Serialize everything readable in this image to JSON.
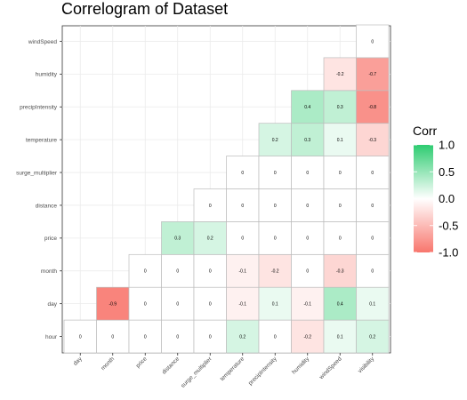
{
  "chart_data": {
    "type": "heatmap",
    "title": "Correlogram of Dataset",
    "xlabel": "",
    "ylabel": "",
    "x_categories": [
      "day",
      "month",
      "price",
      "distance",
      "surge_multiplier",
      "temperature",
      "precipIntensity",
      "humidity",
      "windSpeed",
      "visibility"
    ],
    "y_categories": [
      "hour",
      "day",
      "month",
      "price",
      "distance",
      "surge_multiplier",
      "temperature",
      "precipIntensity",
      "humidity",
      "windSpeed"
    ],
    "cells": [
      {
        "x": "day",
        "y": "hour",
        "value": 0
      },
      {
        "x": "month",
        "y": "hour",
        "value": 0
      },
      {
        "x": "price",
        "y": "hour",
        "value": 0
      },
      {
        "x": "distance",
        "y": "hour",
        "value": 0
      },
      {
        "x": "surge_multiplier",
        "y": "hour",
        "value": 0
      },
      {
        "x": "temperature",
        "y": "hour",
        "value": 0.2
      },
      {
        "x": "precipIntensity",
        "y": "hour",
        "value": 0
      },
      {
        "x": "humidity",
        "y": "hour",
        "value": -0.2
      },
      {
        "x": "windSpeed",
        "y": "hour",
        "value": 0.1
      },
      {
        "x": "visibility",
        "y": "hour",
        "value": 0.2
      },
      {
        "x": "month",
        "y": "day",
        "value": -0.9
      },
      {
        "x": "price",
        "y": "day",
        "value": 0
      },
      {
        "x": "distance",
        "y": "day",
        "value": 0
      },
      {
        "x": "surge_multiplier",
        "y": "day",
        "value": 0
      },
      {
        "x": "temperature",
        "y": "day",
        "value": -0.1
      },
      {
        "x": "precipIntensity",
        "y": "day",
        "value": 0.1
      },
      {
        "x": "humidity",
        "y": "day",
        "value": -0.1
      },
      {
        "x": "windSpeed",
        "y": "day",
        "value": 0.4
      },
      {
        "x": "visibility",
        "y": "day",
        "value": 0.1
      },
      {
        "x": "price",
        "y": "month",
        "value": 0
      },
      {
        "x": "distance",
        "y": "month",
        "value": 0
      },
      {
        "x": "surge_multiplier",
        "y": "month",
        "value": 0
      },
      {
        "x": "temperature",
        "y": "month",
        "value": -0.1
      },
      {
        "x": "precipIntensity",
        "y": "month",
        "value": -0.2
      },
      {
        "x": "humidity",
        "y": "month",
        "value": 0
      },
      {
        "x": "windSpeed",
        "y": "month",
        "value": -0.3
      },
      {
        "x": "visibility",
        "y": "month",
        "value": 0
      },
      {
        "x": "distance",
        "y": "price",
        "value": 0.3
      },
      {
        "x": "surge_multiplier",
        "y": "price",
        "value": 0.2
      },
      {
        "x": "temperature",
        "y": "price",
        "value": 0
      },
      {
        "x": "precipIntensity",
        "y": "price",
        "value": 0
      },
      {
        "x": "humidity",
        "y": "price",
        "value": 0
      },
      {
        "x": "windSpeed",
        "y": "price",
        "value": 0
      },
      {
        "x": "visibility",
        "y": "price",
        "value": 0
      },
      {
        "x": "surge_multiplier",
        "y": "distance",
        "value": 0
      },
      {
        "x": "temperature",
        "y": "distance",
        "value": 0
      },
      {
        "x": "precipIntensity",
        "y": "distance",
        "value": 0
      },
      {
        "x": "humidity",
        "y": "distance",
        "value": 0
      },
      {
        "x": "windSpeed",
        "y": "distance",
        "value": 0
      },
      {
        "x": "visibility",
        "y": "distance",
        "value": 0
      },
      {
        "x": "temperature",
        "y": "surge_multiplier",
        "value": 0
      },
      {
        "x": "precipIntensity",
        "y": "surge_multiplier",
        "value": 0
      },
      {
        "x": "humidity",
        "y": "surge_multiplier",
        "value": 0
      },
      {
        "x": "windSpeed",
        "y": "surge_multiplier",
        "value": 0
      },
      {
        "x": "visibility",
        "y": "surge_multiplier",
        "value": 0
      },
      {
        "x": "precipIntensity",
        "y": "temperature",
        "value": 0.2
      },
      {
        "x": "humidity",
        "y": "temperature",
        "value": 0.3
      },
      {
        "x": "windSpeed",
        "y": "temperature",
        "value": 0.1
      },
      {
        "x": "visibility",
        "y": "temperature",
        "value": -0.3
      },
      {
        "x": "humidity",
        "y": "precipIntensity",
        "value": 0.4
      },
      {
        "x": "windSpeed",
        "y": "precipIntensity",
        "value": 0.3
      },
      {
        "x": "visibility",
        "y": "precipIntensity",
        "value": -0.8
      },
      {
        "x": "windSpeed",
        "y": "humidity",
        "value": -0.2
      },
      {
        "x": "visibility",
        "y": "humidity",
        "value": -0.7
      },
      {
        "x": "visibility",
        "y": "windSpeed",
        "value": 0
      }
    ],
    "color_scale": {
      "low": "#f8766d",
      "mid": "#ffffff",
      "high": "#2ecc71",
      "domain": [
        -1,
        0,
        1
      ]
    },
    "legend": {
      "title": "Corr",
      "placement": "right",
      "ticks": [
        1.0,
        0.5,
        0.0,
        -0.5,
        -1.0
      ],
      "tick_labels": [
        "1.0",
        "0.5",
        "0.0",
        "-0.5",
        "-1.0"
      ]
    },
    "grid": true
  }
}
